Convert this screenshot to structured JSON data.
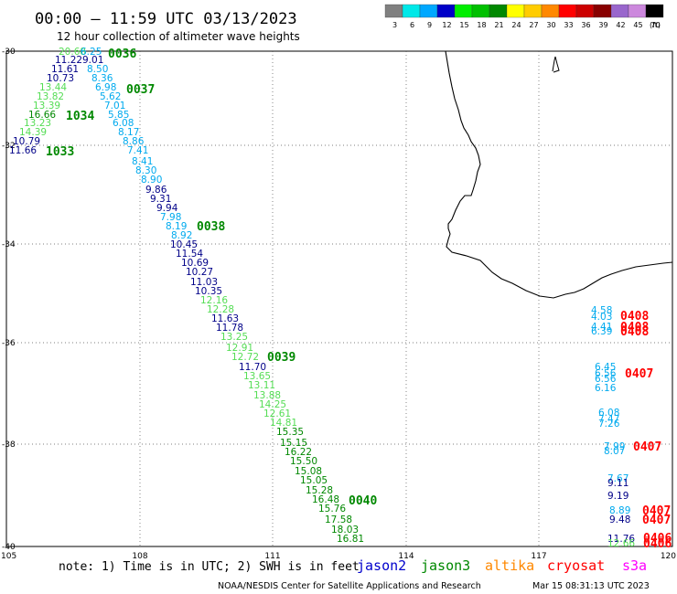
{
  "header": {
    "title": "00:00 – 11:59 UTC 03/13/2023",
    "subtitle": "12 hour collection of altimeter wave heights"
  },
  "legend": {
    "unit_label": "(ft)",
    "bins": [
      {
        "label": "3",
        "color": "#808080"
      },
      {
        "label": "6",
        "color": "#00e8e8"
      },
      {
        "label": "9",
        "color": "#00a8ff"
      },
      {
        "label": "12",
        "color": "#0000c8"
      },
      {
        "label": "15",
        "color": "#00ee00"
      },
      {
        "label": "18",
        "color": "#00c000"
      },
      {
        "label": "21",
        "color": "#008800"
      },
      {
        "label": "24",
        "color": "#ffff00"
      },
      {
        "label": "27",
        "color": "#ffcc00"
      },
      {
        "label": "30",
        "color": "#ff8800"
      },
      {
        "label": "33",
        "color": "#ff0000"
      },
      {
        "label": "36",
        "color": "#cc0000"
      },
      {
        "label": "39",
        "color": "#880000"
      },
      {
        "label": "42",
        "color": "#9966cc"
      },
      {
        "label": "45",
        "color": "#cc88dd"
      },
      {
        "label": "70",
        "color": "#000000"
      }
    ]
  },
  "axes": {
    "lon_ticks": [
      "105",
      "108",
      "111",
      "114",
      "117",
      "120"
    ],
    "lat_ticks": [
      "-30",
      "-32",
      "-34",
      "-36",
      "-38",
      "-40"
    ],
    "lon_range": [
      105,
      120
    ],
    "lat_range": [
      -30,
      -40
    ]
  },
  "colors": {
    "dk": "#000088",
    "lt": "#00aaee",
    "gr": "#55dd55",
    "grn": "#008800",
    "red": "#ff0000"
  },
  "track_a": {
    "values": [
      {
        "t": "20.68",
        "c": "gr"
      },
      {
        "t": "6.25",
        "c": "lt"
      },
      {
        "t": "11.22",
        "c": "dk"
      },
      {
        "t": "9.01",
        "c": "dk"
      },
      {
        "t": "11.61",
        "c": "dk"
      },
      {
        "t": "8.50",
        "c": "lt"
      },
      {
        "t": "10.73",
        "c": "dk"
      },
      {
        "t": "8.36",
        "c": "lt"
      },
      {
        "t": "13.44",
        "c": "gr"
      },
      {
        "t": "6.98",
        "c": "lt"
      },
      {
        "t": "13.82",
        "c": "gr"
      },
      {
        "t": "5.62",
        "c": "lt"
      },
      {
        "t": "13.39",
        "c": "gr"
      },
      {
        "t": "7.01",
        "c": "lt"
      },
      {
        "t": "16.66",
        "c": "grn"
      },
      {
        "t": "5.85",
        "c": "lt"
      },
      {
        "t": "13.23",
        "c": "gr"
      },
      {
        "t": "6.08",
        "c": "lt"
      },
      {
        "t": "14.39",
        "c": "gr"
      },
      {
        "t": "8.17",
        "c": "lt"
      },
      {
        "t": "10.79",
        "c": "dk"
      },
      {
        "t": "8.86",
        "c": "lt"
      },
      {
        "t": "11.66",
        "c": "dk"
      },
      {
        "t": "7.41",
        "c": "lt"
      },
      {
        "t": "8.41",
        "c": "lt"
      },
      {
        "t": "8.30",
        "c": "lt"
      },
      {
        "t": "8.90",
        "c": "lt"
      },
      {
        "t": "9.86",
        "c": "dk"
      },
      {
        "t": "9.31",
        "c": "dk"
      },
      {
        "t": "9.94",
        "c": "dk"
      },
      {
        "t": "7.98",
        "c": "lt"
      },
      {
        "t": "8.19",
        "c": "lt"
      },
      {
        "t": "8.92",
        "c": "lt"
      },
      {
        "t": "10.45",
        "c": "dk"
      },
      {
        "t": "11.54",
        "c": "dk"
      },
      {
        "t": "10.69",
        "c": "dk"
      },
      {
        "t": "10.27",
        "c": "dk"
      },
      {
        "t": "11.03",
        "c": "dk"
      },
      {
        "t": "10.35",
        "c": "dk"
      },
      {
        "t": "12.16",
        "c": "gr"
      },
      {
        "t": "12.28",
        "c": "gr"
      },
      {
        "t": "11.63",
        "c": "dk"
      },
      {
        "t": "11.78",
        "c": "dk"
      },
      {
        "t": "13.25",
        "c": "gr"
      },
      {
        "t": "12.91",
        "c": "gr"
      },
      {
        "t": "12.72",
        "c": "gr"
      },
      {
        "t": "11.70",
        "c": "dk"
      },
      {
        "t": "13.65",
        "c": "gr"
      },
      {
        "t": "13.11",
        "c": "gr"
      },
      {
        "t": "13.88",
        "c": "gr"
      },
      {
        "t": "14.25",
        "c": "gr"
      },
      {
        "t": "12.61",
        "c": "gr"
      },
      {
        "t": "14.81",
        "c": "gr"
      },
      {
        "t": "15.35",
        "c": "grn"
      },
      {
        "t": "15.15",
        "c": "grn"
      },
      {
        "t": "16.22",
        "c": "grn"
      },
      {
        "t": "15.50",
        "c": "grn"
      },
      {
        "t": "15.08",
        "c": "grn"
      },
      {
        "t": "15.05",
        "c": "grn"
      },
      {
        "t": "15.28",
        "c": "grn"
      },
      {
        "t": "16.48",
        "c": "grn"
      },
      {
        "t": "15.76",
        "c": "grn"
      },
      {
        "t": "17.58",
        "c": "grn"
      },
      {
        "t": "18.03",
        "c": "grn"
      },
      {
        "t": "16.81",
        "c": "grn"
      }
    ],
    "time_labels": [
      "0036",
      "0037",
      "1034",
      "1033",
      "0038",
      "0039",
      "0040"
    ]
  },
  "track_b": {
    "values": [
      {
        "t": "4.58",
        "c": "lt"
      },
      {
        "t": "4.03",
        "c": "lt"
      },
      {
        "t": "4.41",
        "c": "lt"
      },
      {
        "t": "6.39",
        "c": "lt"
      },
      {
        "t": "6.45",
        "c": "lt"
      },
      {
        "t": "6.56",
        "c": "lt"
      },
      {
        "t": "6.56",
        "c": "lt"
      },
      {
        "t": "6.16",
        "c": "lt"
      },
      {
        "t": "6.08",
        "c": "lt"
      },
      {
        "t": "7.47",
        "c": "lt"
      },
      {
        "t": "7.26",
        "c": "lt"
      },
      {
        "t": "7.99",
        "c": "lt"
      },
      {
        "t": "8.07",
        "c": "lt"
      },
      {
        "t": "7.67",
        "c": "lt"
      },
      {
        "t": "9.11",
        "c": "dk"
      },
      {
        "t": "9.19",
        "c": "dk"
      },
      {
        "t": "8.89",
        "c": "lt"
      },
      {
        "t": "9.48",
        "c": "dk"
      },
      {
        "t": "11.76",
        "c": "dk"
      },
      {
        "t": "12.66",
        "c": "gr"
      }
    ],
    "time_labels": [
      "0408",
      "0408",
      "0408",
      "0407",
      "0407",
      "0407",
      "0407",
      "0406",
      "0406"
    ]
  },
  "footer": {
    "note": "note: 1) Time is in UTC; 2) SWH is in feet",
    "satellites": [
      {
        "name": "jason2",
        "color": "#0000cc"
      },
      {
        "name": "jason3",
        "color": "#008800"
      },
      {
        "name": "altika",
        "color": "#ff8800"
      },
      {
        "name": "cryosat",
        "color": "#ff0000"
      },
      {
        "name": "s3a",
        "color": "#ff00ff"
      }
    ],
    "credit": "NOAA/NESDIS Center for Satellite Applications and Research",
    "timestamp": "Mar 15 08:31:13 UTC 2023"
  }
}
